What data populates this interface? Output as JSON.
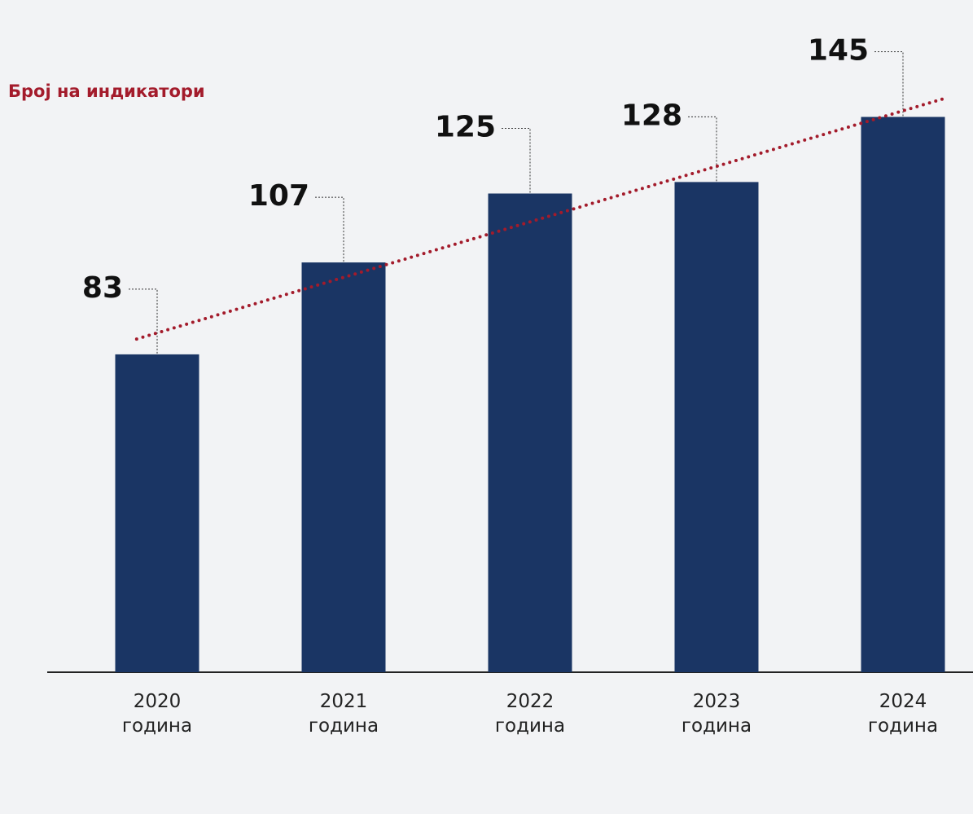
{
  "chart_data": {
    "type": "bar",
    "title": "Број на индикатори",
    "categories": [
      "2020 година",
      "2021 година",
      "2022 година",
      "2023 година",
      "2024 година"
    ],
    "values": [
      83,
      107,
      125,
      128,
      145
    ],
    "color": "#1a3564",
    "ylim": [
      0,
      150
    ],
    "trendline": true,
    "trendline_color": "#a31b2b"
  }
}
